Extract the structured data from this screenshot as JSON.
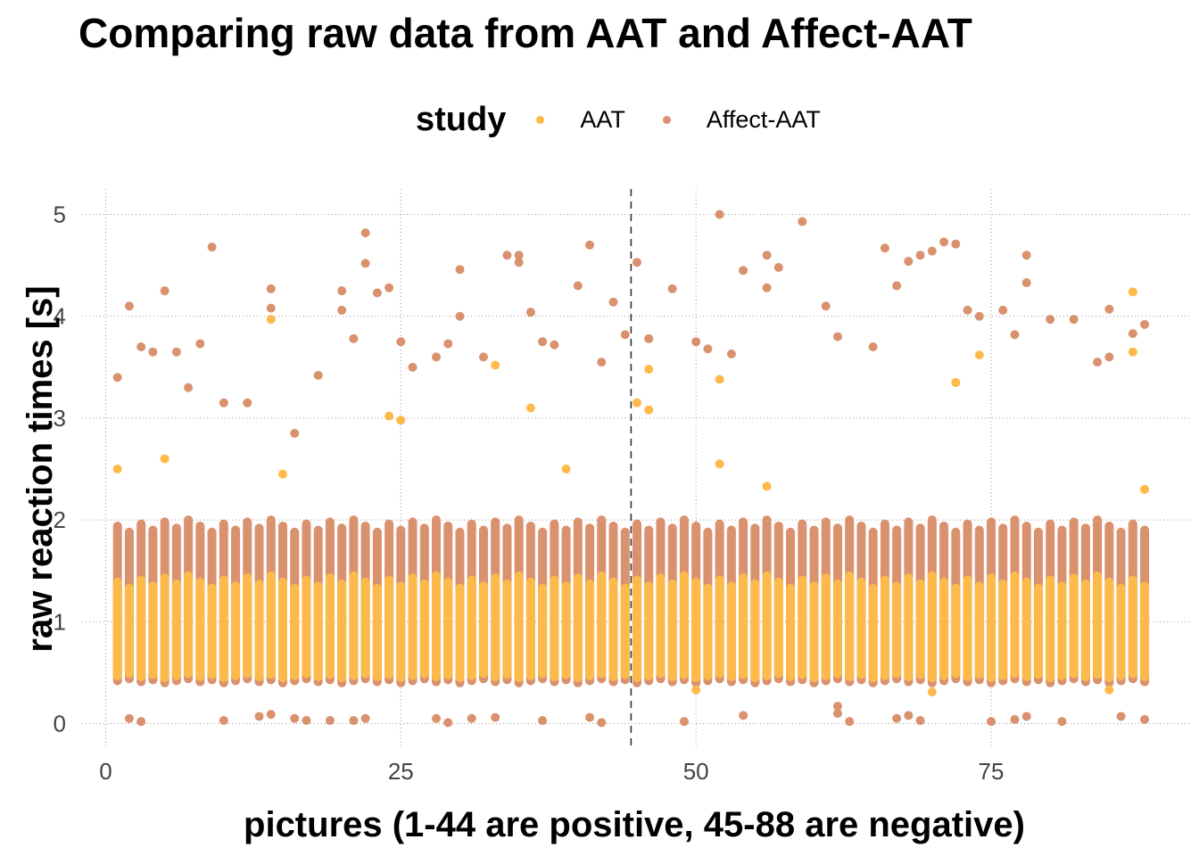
{
  "chart_data": {
    "type": "scatter",
    "title": "Comparing raw data from AAT and Affect-AAT",
    "xlabel": "pictures (1-44 are positive, 45-88 are negative)",
    "ylabel": "raw reaction times [s]",
    "xlim": [
      -2,
      92
    ],
    "ylim": [
      -0.25,
      5.25
    ],
    "xticks": [
      0,
      25,
      50,
      75
    ],
    "yticks": [
      0,
      1,
      2,
      3,
      4,
      5
    ],
    "grid": "dotted",
    "legend": {
      "title": "study",
      "position": "top"
    },
    "reference_line": {
      "x": 44.5,
      "style": "dashed"
    },
    "series": [
      {
        "name": "AAT",
        "color": "#FDB94A",
        "dense_band": [
          0.45,
          1.45
        ],
        "points": [
          [
            1,
            2.5
          ],
          [
            5,
            2.6
          ],
          [
            14,
            3.97
          ],
          [
            15,
            2.45
          ],
          [
            24,
            3.02
          ],
          [
            25,
            2.98
          ],
          [
            33,
            3.52
          ],
          [
            36,
            3.1
          ],
          [
            39,
            2.5
          ],
          [
            45,
            3.15
          ],
          [
            46,
            3.08
          ],
          [
            46,
            3.48
          ],
          [
            50,
            0.33
          ],
          [
            52,
            3.38
          ],
          [
            52,
            2.55
          ],
          [
            56,
            2.33
          ],
          [
            70,
            0.31
          ],
          [
            72,
            3.35
          ],
          [
            74,
            3.62
          ],
          [
            85,
            0.33
          ],
          [
            87,
            4.24
          ],
          [
            87,
            3.65
          ],
          [
            88,
            2.3
          ]
        ]
      },
      {
        "name": "Affect-AAT",
        "color": "#D9916E",
        "dense_band": [
          0.4,
          2.0
        ],
        "points": [
          [
            1,
            3.4
          ],
          [
            2,
            4.1
          ],
          [
            3,
            3.7
          ],
          [
            4,
            3.65
          ],
          [
            5,
            4.25
          ],
          [
            6,
            3.65
          ],
          [
            7,
            3.3
          ],
          [
            8,
            3.73
          ],
          [
            9,
            4.68
          ],
          [
            10,
            3.15
          ],
          [
            12,
            3.15
          ],
          [
            14,
            4.27
          ],
          [
            14,
            4.08
          ],
          [
            16,
            2.85
          ],
          [
            18,
            3.42
          ],
          [
            20,
            4.25
          ],
          [
            20,
            4.06
          ],
          [
            21,
            3.78
          ],
          [
            22,
            4.82
          ],
          [
            22,
            4.52
          ],
          [
            23,
            4.23
          ],
          [
            24,
            4.28
          ],
          [
            25,
            3.75
          ],
          [
            26,
            3.5
          ],
          [
            28,
            3.6
          ],
          [
            29,
            3.73
          ],
          [
            30,
            4.46
          ],
          [
            30,
            4.0
          ],
          [
            32,
            3.6
          ],
          [
            34,
            4.6
          ],
          [
            35,
            4.6
          ],
          [
            35,
            4.53
          ],
          [
            36,
            4.04
          ],
          [
            37,
            3.75
          ],
          [
            38,
            3.72
          ],
          [
            40,
            4.3
          ],
          [
            41,
            4.7
          ],
          [
            42,
            3.55
          ],
          [
            43,
            4.14
          ],
          [
            44,
            3.82
          ],
          [
            45,
            4.53
          ],
          [
            46,
            3.78
          ],
          [
            48,
            4.27
          ],
          [
            50,
            3.75
          ],
          [
            51,
            3.68
          ],
          [
            52,
            5.0
          ],
          [
            53,
            3.63
          ],
          [
            54,
            4.45
          ],
          [
            56,
            4.6
          ],
          [
            56,
            4.28
          ],
          [
            57,
            4.48
          ],
          [
            59,
            4.93
          ],
          [
            61,
            4.1
          ],
          [
            62,
            3.8
          ],
          [
            65,
            3.7
          ],
          [
            66,
            4.67
          ],
          [
            67,
            4.3
          ],
          [
            68,
            4.54
          ],
          [
            69,
            4.6
          ],
          [
            70,
            4.64
          ],
          [
            71,
            4.73
          ],
          [
            72,
            4.71
          ],
          [
            73,
            4.06
          ],
          [
            74,
            4.0
          ],
          [
            76,
            4.06
          ],
          [
            77,
            3.82
          ],
          [
            78,
            4.6
          ],
          [
            78,
            4.33
          ],
          [
            80,
            3.97
          ],
          [
            82,
            3.97
          ],
          [
            84,
            3.55
          ],
          [
            85,
            4.07
          ],
          [
            85,
            3.6
          ],
          [
            87,
            3.83
          ],
          [
            88,
            3.92
          ],
          [
            2,
            0.05
          ],
          [
            3,
            0.02
          ],
          [
            10,
            0.03
          ],
          [
            13,
            0.07
          ],
          [
            14,
            0.09
          ],
          [
            16,
            0.05
          ],
          [
            17,
            0.03
          ],
          [
            19,
            0.03
          ],
          [
            21,
            0.03
          ],
          [
            22,
            0.05
          ],
          [
            28,
            0.05
          ],
          [
            29,
            0.01
          ],
          [
            31,
            0.05
          ],
          [
            33,
            0.06
          ],
          [
            37,
            0.03
          ],
          [
            41,
            0.06
          ],
          [
            42,
            0.01
          ],
          [
            49,
            0.02
          ],
          [
            54,
            0.08
          ],
          [
            62,
            0.1
          ],
          [
            62,
            0.17
          ],
          [
            63,
            0.02
          ],
          [
            67,
            0.05
          ],
          [
            68,
            0.08
          ],
          [
            69,
            0.03
          ],
          [
            75,
            0.02
          ],
          [
            77,
            0.04
          ],
          [
            78,
            0.07
          ],
          [
            81,
            0.02
          ],
          [
            86,
            0.07
          ],
          [
            88,
            0.04
          ]
        ]
      }
    ]
  }
}
